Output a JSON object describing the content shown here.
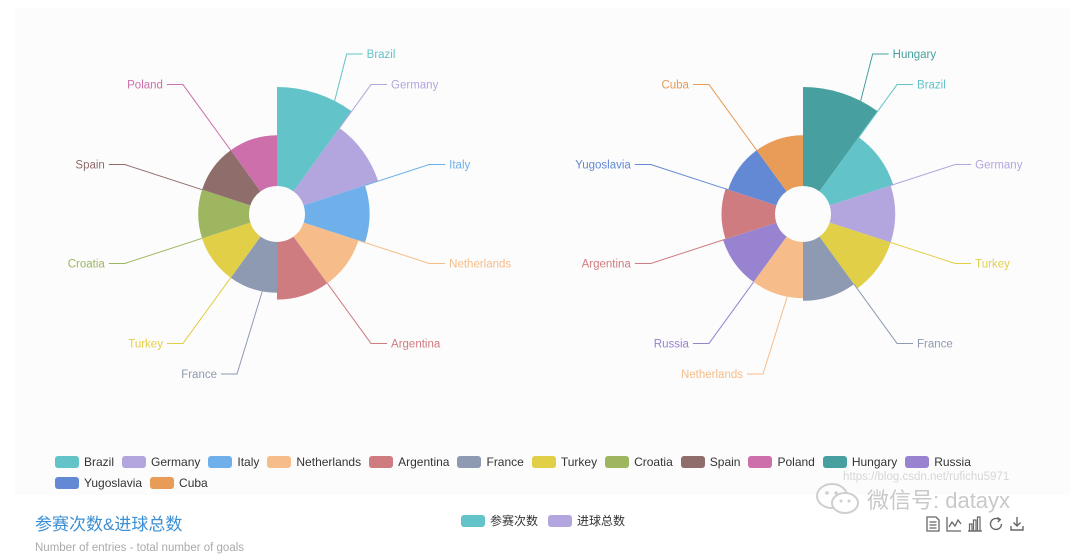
{
  "colors": {
    "Brazil": "#62c4c8",
    "Germany": "#b3a5dd",
    "Italy": "#6fb0ea",
    "Netherlands": "#f6bd8a",
    "Argentina": "#cf7c80",
    "France": "#8e99b2",
    "Turkey": "#e2cf48",
    "Croatia": "#9db65f",
    "Spain": "#8e6d6a",
    "Poland": "#cc6fab",
    "Hungary": "#47a09f",
    "Russia": "#9883d0",
    "Yugoslavia": "#6389d4",
    "Cuba": "#e89c57",
    "title": "#3b8fd4",
    "series_participations": "#62c4c8",
    "series_goals": "#b3a5dd"
  },
  "legend": {
    "items": [
      "Brazil",
      "Germany",
      "Italy",
      "Netherlands",
      "Argentina",
      "France",
      "Turkey",
      "Croatia",
      "Spain",
      "Poland",
      "Hungary",
      "Russia",
      "Yugoslavia",
      "Cuba"
    ]
  },
  "title": {
    "text": "参赛次数&进球总数",
    "subtext": "Number of entries - total number of goals"
  },
  "series_legend": {
    "items": [
      "参赛次数",
      "进球总数"
    ]
  },
  "watermark": {
    "url": "https://blog.csdn.net/rufichu5971",
    "brand": "微信号: datayx"
  },
  "toolbox": [
    "data-view-icon",
    "line-chart-icon",
    "bar-chart-icon",
    "restore-icon",
    "download-icon"
  ],
  "chart_data": [
    {
      "type": "pie",
      "variant": "nightingale-rose-radius",
      "series": "参赛次数",
      "categories": [
        "Brazil",
        "Germany",
        "Italy",
        "Netherlands",
        "Argentina",
        "France",
        "Turkey",
        "Croatia",
        "Spain",
        "Poland"
      ],
      "values": [
        20,
        17,
        15,
        14,
        14,
        13,
        13,
        13,
        13,
        13
      ]
    },
    {
      "type": "pie",
      "variant": "nightingale-rose-radius",
      "series": "进球总数",
      "categories": [
        "Hungary",
        "Brazil",
        "Germany",
        "Turkey",
        "France",
        "Netherlands",
        "Russia",
        "Argentina",
        "Yugoslavia",
        "Cuba"
      ],
      "values": [
        27,
        15,
        14,
        14,
        12,
        11,
        11,
        10,
        9,
        9
      ]
    }
  ]
}
